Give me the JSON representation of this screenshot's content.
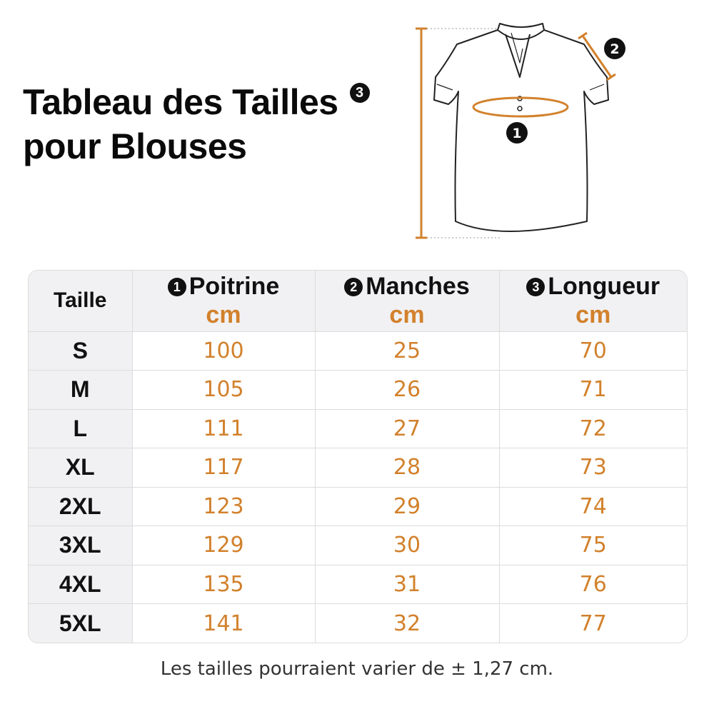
{
  "title": {
    "line1": "Tableau des Tailles",
    "line2": "pour Blouses",
    "badge": "3"
  },
  "diagram": {
    "markers": {
      "chest": "1",
      "sleeve": "2",
      "length": "3"
    }
  },
  "table": {
    "size_header": "Taille",
    "columns": [
      {
        "num": "1",
        "name": "Poitrine",
        "unit": "cm"
      },
      {
        "num": "2",
        "name": "Manches",
        "unit": "cm"
      },
      {
        "num": "3",
        "name": "Longueur",
        "unit": "cm"
      }
    ],
    "rows": [
      {
        "size": "S",
        "values": [
          "100",
          "25",
          "70"
        ]
      },
      {
        "size": "M",
        "values": [
          "105",
          "26",
          "71"
        ]
      },
      {
        "size": "L",
        "values": [
          "111",
          "27",
          "72"
        ]
      },
      {
        "size": "XL",
        "values": [
          "117",
          "28",
          "73"
        ]
      },
      {
        "size": "2XL",
        "values": [
          "123",
          "29",
          "74"
        ]
      },
      {
        "size": "3XL",
        "values": [
          "129",
          "30",
          "75"
        ]
      },
      {
        "size": "4XL",
        "values": [
          "135",
          "31",
          "76"
        ]
      },
      {
        "size": "5XL",
        "values": [
          "141",
          "32",
          "77"
        ]
      }
    ]
  },
  "footnote": "Les tailles pourraient varier de ± 1,27 cm.",
  "colors": {
    "accent": "#d2812c",
    "header_bg": "#f1f1f3",
    "border": "#dcdcdc"
  }
}
